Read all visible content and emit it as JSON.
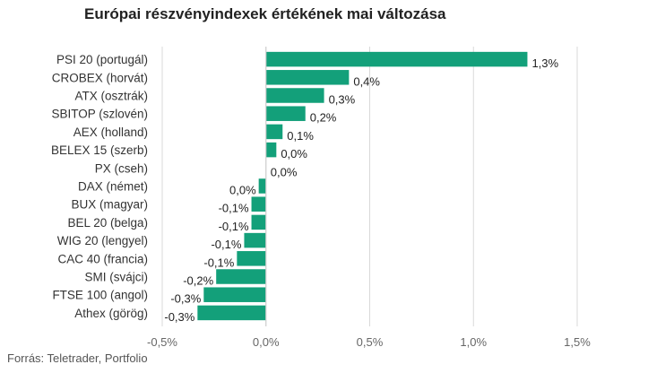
{
  "title": "Európai részvényindexek értékének mai változása",
  "source": "Forrás: Teletrader, Portfolio",
  "colors": {
    "bar": "#13a07a",
    "grid": "#d9d9d9",
    "axis": "#cccccc",
    "text": "#333333"
  },
  "chart_data": {
    "type": "bar",
    "orientation": "horizontal",
    "title": "Európai részvényindexek értékének mai változása",
    "xlabel": "",
    "ylabel": "",
    "xlim": [
      -0.5,
      1.5
    ],
    "x_ticks": [
      -0.5,
      0,
      0.5,
      1.0,
      1.5
    ],
    "x_tick_labels": [
      "-0,5%",
      "0,0%",
      "0,5%",
      "1,0%",
      "1,5%"
    ],
    "grid": true,
    "categories": [
      "PSI 20 (portugál)",
      "CROBEX (horvát)",
      "ATX (osztrák)",
      "SBITOP (szlovén)",
      "AEX (holland)",
      "BELEX 15 (szerb)",
      "PX (cseh)",
      "DAX (német)",
      "BUX (magyar)",
      "BEL 20 (belga)",
      "WIG 20 (lengyel)",
      "CAC 40 (francia)",
      "SMI (svájci)",
      "FTSE 100 (angol)",
      "Athex (görög)"
    ],
    "values": [
      1.26,
      0.4,
      0.28,
      0.19,
      0.08,
      0.05,
      0.0,
      -0.035,
      -0.07,
      -0.07,
      -0.105,
      -0.14,
      -0.24,
      -0.3,
      -0.33
    ],
    "value_labels": [
      "1,3%",
      "0,4%",
      "0,3%",
      "0,2%",
      "0,1%",
      "0,0%",
      "0,0%",
      "0,0%",
      "-0,1%",
      "-0,1%",
      "-0,1%",
      "-0,1%",
      "-0,2%",
      "-0,3%",
      "-0,3%"
    ]
  }
}
